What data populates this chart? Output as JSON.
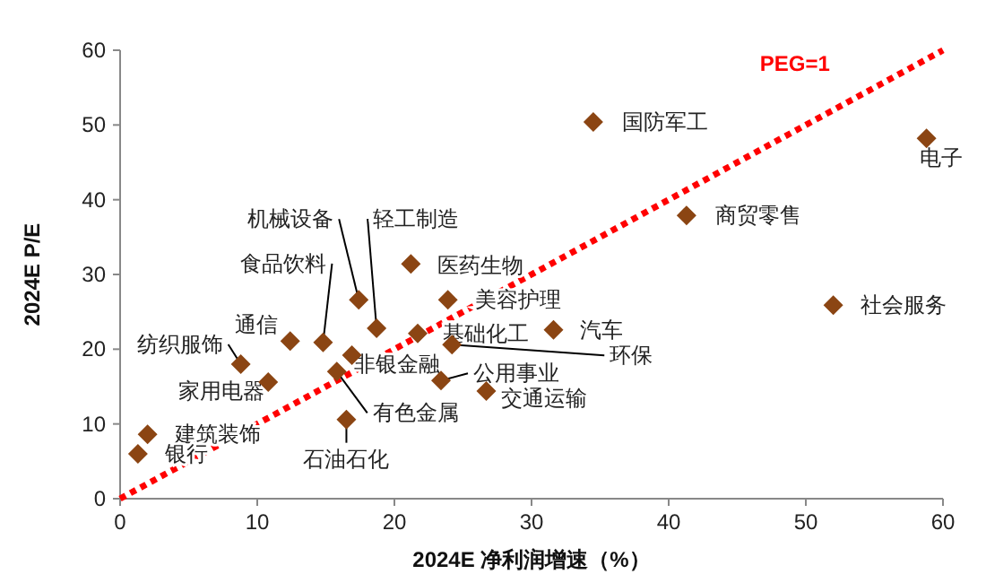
{
  "chart_data": {
    "type": "scatter",
    "xlabel": "2024E 净利润增速（%）",
    "ylabel": "2024E P/E",
    "xlim": [
      0,
      60
    ],
    "ylim": [
      0,
      60
    ],
    "xticks": [
      0,
      10,
      20,
      30,
      40,
      50,
      60
    ],
    "yticks": [
      0,
      10,
      20,
      30,
      40,
      50,
      60
    ],
    "grid": false,
    "legend": false,
    "series": [
      {
        "type": "scatter",
        "color": "#8b4513",
        "marker": "diamond",
        "x": [
          34.5,
          58.8,
          41.3,
          52.0,
          31.6,
          26.7,
          21.2,
          17.4,
          18.7,
          23.9,
          21.7,
          24.2,
          23.4,
          16.9,
          14.8,
          12.4,
          8.8,
          10.8,
          15.8,
          16.5,
          2.0,
          1.3
        ],
        "values": [
          50.4,
          48.2,
          37.9,
          25.9,
          22.6,
          14.4,
          31.4,
          26.6,
          22.8,
          26.6,
          22.1,
          20.6,
          15.8,
          19.2,
          20.9,
          21.1,
          18.0,
          15.6,
          17.0,
          10.6,
          8.6,
          6.0
        ]
      },
      {
        "type": "line",
        "name": "PEG=1",
        "color": "#ff0000",
        "line_style": "dotted",
        "marker": "none",
        "x": [
          0,
          60
        ],
        "values": [
          0,
          60
        ]
      }
    ],
    "annotations": [
      {
        "text": "国防军工",
        "x": 34.5,
        "y": 50.4
      },
      {
        "text": "电子",
        "x": 58.8,
        "y": 48.2
      },
      {
        "text": "商贸零售",
        "x": 41.3,
        "y": 37.9
      },
      {
        "text": "社会服务",
        "x": 52.0,
        "y": 25.9
      },
      {
        "text": "汽车",
        "x": 31.6,
        "y": 22.6
      },
      {
        "text": "交通运输",
        "x": 26.7,
        "y": 14.4
      },
      {
        "text": "医药生物",
        "x": 21.2,
        "y": 31.4
      },
      {
        "text": "机械设备",
        "x": 17.4,
        "y": 26.6
      },
      {
        "text": "轻工制造",
        "x": 18.7,
        "y": 22.8
      },
      {
        "text": "美容护理",
        "x": 23.9,
        "y": 26.6
      },
      {
        "text": "基础化工",
        "x": 21.7,
        "y": 22.1
      },
      {
        "text": "环保",
        "x": 24.2,
        "y": 20.6
      },
      {
        "text": "公用事业",
        "x": 23.4,
        "y": 15.8
      },
      {
        "text": "非银金融",
        "x": 16.9,
        "y": 19.2
      },
      {
        "text": "食品饮料",
        "x": 14.8,
        "y": 20.9
      },
      {
        "text": "通信",
        "x": 12.4,
        "y": 21.1
      },
      {
        "text": "纺织服饰",
        "x": 8.8,
        "y": 18.0
      },
      {
        "text": "家用电器",
        "x": 10.8,
        "y": 15.6
      },
      {
        "text": "有色金属",
        "x": 15.8,
        "y": 17.0
      },
      {
        "text": "石油石化",
        "x": 16.5,
        "y": 10.6
      },
      {
        "text": "建筑装饰",
        "x": 2.0,
        "y": 8.6
      },
      {
        "text": "银行",
        "x": 1.3,
        "y": 6.0
      }
    ]
  }
}
